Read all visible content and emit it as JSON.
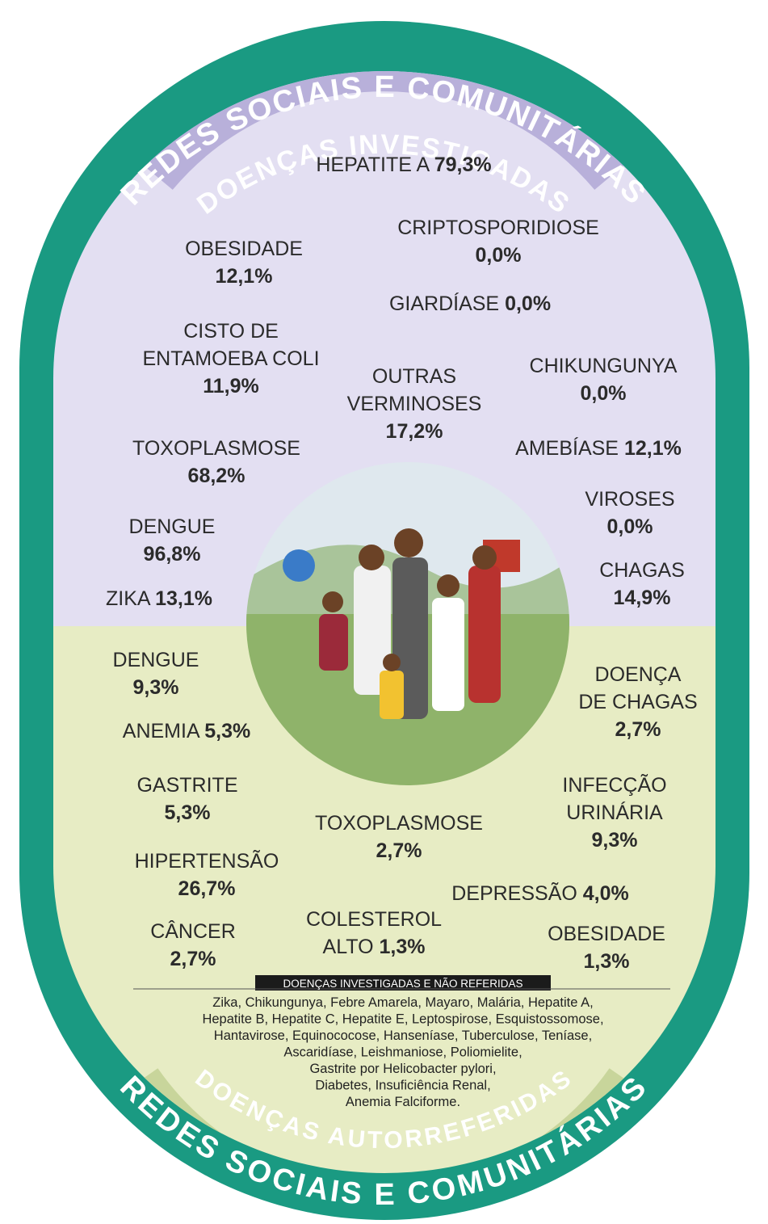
{
  "header": {
    "outer": "REDES SOCIAIS E COMUNITÁRIAS",
    "inner": "DOENÇAS INVESTIGADAS"
  },
  "investigated": [
    {
      "lines": [
        "HEPATITE A"
      ],
      "value": "79,3%"
    },
    {
      "lines": [
        "CRIPTOSPORIDIOSE"
      ],
      "value": "0,0%"
    },
    {
      "lines": [
        "OBESIDADE"
      ],
      "value": "12,1%"
    },
    {
      "lines": [
        "GIARDÍASE"
      ],
      "value": "0,0%"
    },
    {
      "lines": [
        "CISTO DE",
        "ENTAMOEBA COLI"
      ],
      "value": "11,9%"
    },
    {
      "lines": [
        "OUTRAS",
        "VERMINOSES"
      ],
      "value": "17,2%"
    },
    {
      "lines": [
        "CHIKUNGUNYA"
      ],
      "value": "0,0%"
    },
    {
      "lines": [
        "TOXOPLASMOSE"
      ],
      "value": "68,2%"
    },
    {
      "lines": [
        "AMEBÍASE"
      ],
      "value": "12,1%"
    },
    {
      "lines": [
        "VIROSES"
      ],
      "value": "0,0%"
    },
    {
      "lines": [
        "DENGUE"
      ],
      "value": "96,8%"
    },
    {
      "lines": [
        "CHAGAS"
      ],
      "value": "14,9%"
    },
    {
      "lines": [
        "ZIKA"
      ],
      "value": "13,1%"
    }
  ],
  "self_reported": [
    {
      "lines": [
        "DENGUE"
      ],
      "value": "9,3%"
    },
    {
      "lines": [
        "DOENÇA",
        "DE CHAGAS"
      ],
      "value": "2,7%"
    },
    {
      "lines": [
        "ANEMIA"
      ],
      "value": "5,3%"
    },
    {
      "lines": [
        "GASTRITE"
      ],
      "value": "5,3%"
    },
    {
      "lines": [
        "INFECÇÃO",
        "URINÁRIA"
      ],
      "value": "9,3%"
    },
    {
      "lines": [
        "TOXOPLASMOSE"
      ],
      "value": "2,7%"
    },
    {
      "lines": [
        "HIPERTENSÃO"
      ],
      "value": "26,7%"
    },
    {
      "lines": [
        "DEPRESSÃO"
      ],
      "value": "4,0%"
    },
    {
      "lines": [
        "CÂNCER"
      ],
      "value": "2,7%"
    },
    {
      "lines": [
        "COLESTEROL",
        "ALTO"
      ],
      "value": "1,3%"
    },
    {
      "lines": [
        "OBESIDADE"
      ],
      "value": "1,3%"
    }
  ],
  "note": {
    "label": "DOENÇAS INVESTIGADAS E NÃO REFERIDAS",
    "lines": [
      "Zika, Chikungunya, Febre Amarela, Mayaro, Malária, Hepatite A,",
      "Hepatite B, Hepatite C, Hepatite E, Leptospirose, Esquistossomose,",
      "Hantavirose, Equinococose, Hanseníase, Tuberculose, Teníase,",
      "Ascaridíase, Leishmaniose, Poliomielite,",
      "Gastrite por Helicobacter pylori,",
      "Diabetes, Insuficiência Renal,",
      "Anemia Falciforme."
    ]
  },
  "footer": {
    "inner": "DOENÇAS AUTORREFERIDAS",
    "outer": "REDES SOCIAIS E COMUNITÁRIAS"
  }
}
